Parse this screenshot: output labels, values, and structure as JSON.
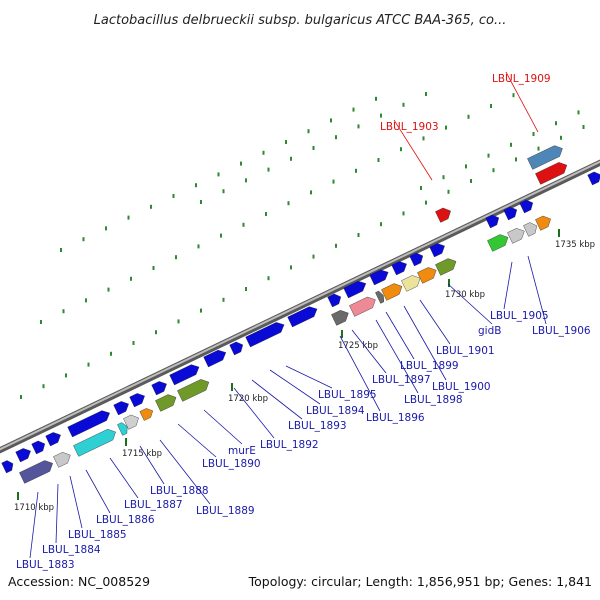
{
  "title": "Lactobacillus delbrueckii subsp. bulgaricus ATCC BAA-365, co...",
  "accession": "Accession: NC_008529",
  "topology": "Topology: circular; Length: 1,856,951 bp; Genes: 1,841",
  "colors": {
    "strand": "#0a0ad6",
    "backbone": "#7c7c7c",
    "dots": "#2f8a2f",
    "label": "#1a1aa8",
    "highlight": "#dd1111",
    "ticks": "#1f6e1f"
  },
  "ruler_ticks": [
    "1710 kbp",
    "1715 kbp",
    "1720 kbp",
    "1725 kbp",
    "1730 kbp",
    "1735 kbp"
  ],
  "genes": [
    {
      "label": "LBUL_1883",
      "color": "#55559c",
      "highlight": false
    },
    {
      "label": "LBUL_1884",
      "color": "#c8c8c8",
      "highlight": false
    },
    {
      "label": "LBUL_1885",
      "color": "#2fd0d4",
      "highlight": false
    },
    {
      "label": "LBUL_1886",
      "color": "#2fd0d4",
      "highlight": false
    },
    {
      "label": "LBUL_1887",
      "color": "#cfcfcf",
      "highlight": false
    },
    {
      "label": "LBUL_1888",
      "color": "#f08b10",
      "highlight": false
    },
    {
      "label": "LBUL_1889",
      "color": "#6f9a2a",
      "highlight": false
    },
    {
      "label": "murE",
      "color": "#6f9a2a",
      "highlight": false
    },
    {
      "label": "LBUL_1890",
      "color": "#1818e0",
      "highlight": false
    },
    {
      "label": "LBUL_1892",
      "color": "#1818e0",
      "highlight": false
    },
    {
      "label": "LBUL_1893",
      "color": "#1818e0",
      "highlight": false
    },
    {
      "label": "LBUL_1894",
      "color": "#1818e0",
      "highlight": false
    },
    {
      "label": "LBUL_1895",
      "color": "#1818e0",
      "highlight": false
    },
    {
      "label": "LBUL_1896",
      "color": "#6a6a6a",
      "highlight": false
    },
    {
      "label": "LBUL_1897",
      "color": "#ee8a95",
      "highlight": false
    },
    {
      "label": "LBUL_1898",
      "color": "#6a6a6a",
      "highlight": false
    },
    {
      "label": "LBUL_1899",
      "color": "#f08b10",
      "highlight": false
    },
    {
      "label": "LBUL_1900",
      "color": "#ece39a",
      "highlight": false
    },
    {
      "label": "LBUL_1901",
      "color": "#f08b10",
      "highlight": false
    },
    {
      "label": "gidB",
      "color": "#6f9a2a",
      "highlight": false
    },
    {
      "label": "LBUL_1903",
      "color": "#dd1111",
      "highlight": true
    },
    {
      "label": "LBUL_1905",
      "color": "#33c833",
      "highlight": false
    },
    {
      "label": "LBUL_1906",
      "color": "#f08b10",
      "highlight": false
    },
    {
      "label": "LBUL_1909",
      "color": "#4f86b8",
      "highlight": true
    }
  ]
}
